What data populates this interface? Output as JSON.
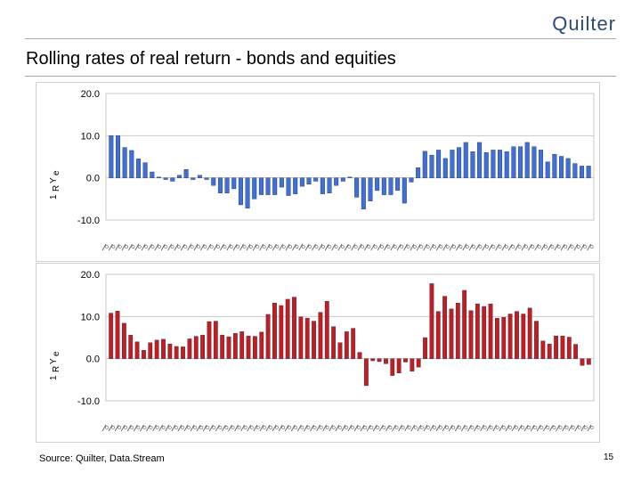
{
  "header": {
    "logo": "Quilter",
    "title": "Rolling rates of real return - bonds and equities"
  },
  "footer": {
    "source": "Source: Quilter, Data.Stream",
    "page_number": "15"
  },
  "chart_data": [
    {
      "type": "bar",
      "series_color": "#3f6fd8",
      "ylabel": "1 R Y e",
      "ylim": [
        -10,
        20
      ],
      "yticks": [
        "20.0",
        "10.0",
        "0.0",
        "-10.0"
      ],
      "grid": true,
      "values": [
        10,
        10,
        7.2,
        6.5,
        4.5,
        3.6,
        1.4,
        0.2,
        -0.4,
        -0.8,
        0.6,
        2.0,
        -0.4,
        0.6,
        -0.4,
        -1.8,
        -3.6,
        -3.6,
        -2.6,
        -6.4,
        -7.2,
        -5.0,
        -4.0,
        -4.0,
        -4.0,
        -2.2,
        -4.2,
        -3.8,
        -2.0,
        -1.5,
        -0.8,
        -3.8,
        -3.6,
        -1.8,
        -0.8,
        0.2,
        -4.6,
        -7.4,
        -5.5,
        -3.0,
        -4.0,
        -4.0,
        -3.0,
        -6.0,
        -1.0,
        2.4,
        6.3,
        5.4,
        6.6,
        4.6,
        6.6,
        7.2,
        8.4,
        6.2,
        8.4,
        6.0,
        6.6,
        6.6,
        6.2,
        7.4,
        7.4,
        8.4,
        7.4,
        6.6,
        3.8,
        5.6,
        5.1,
        4.6,
        3.4,
        2.8,
        2.8
      ]
    },
    {
      "type": "bar",
      "series_color": "#c61c1c",
      "ylabel": "1 R Y e",
      "ylim": [
        -10,
        20
      ],
      "yticks": [
        "20.0",
        "10.0",
        "0.0",
        "-10.0"
      ],
      "grid": true,
      "values": [
        10.8,
        11.3,
        8.4,
        5.6,
        4.0,
        2.0,
        3.8,
        4.4,
        4.6,
        3.5,
        2.9,
        2.8,
        4.7,
        5.3,
        5.6,
        8.8,
        8.9,
        5.6,
        5.2,
        6.0,
        6.4,
        5.4,
        5.3,
        6.3,
        10.5,
        13.2,
        12.6,
        14.1,
        14.6,
        9.9,
        9.6,
        8.9,
        11.0,
        13.6,
        7.6,
        3.8,
        6.4,
        7.2,
        1.5,
        -6.4,
        -0.5,
        -0.7,
        -1.2,
        -4.0,
        -3.4,
        -0.8,
        -3.0,
        -2.0,
        5.0,
        17.8,
        11.2,
        14.8,
        11.8,
        13.2,
        16.2,
        11.4,
        13.0,
        12.4,
        13.0,
        9.6,
        9.8,
        10.6,
        11.2,
        10.6,
        12.0,
        8.9,
        4.2,
        3.5,
        5.4,
        5.4,
        5.1,
        3.4,
        -1.6,
        -1.4
      ]
    }
  ]
}
